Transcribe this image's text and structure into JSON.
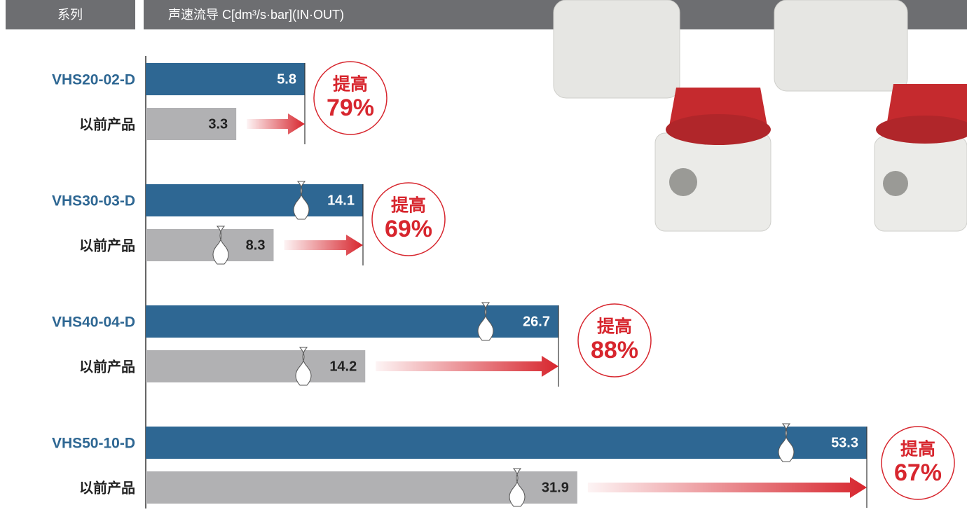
{
  "chart_data": {
    "type": "bar",
    "header": [
      "系列",
      "声速流导 C[dm³/s·bar](IN·OUT)"
    ],
    "categories": [
      "VHS20-02-D",
      "VHS30-03-D",
      "VHS40-04-D",
      "VHS50-10-D"
    ],
    "series": [
      {
        "color": "#2e6793",
        "values": [
          5.8,
          14.1,
          26.7,
          53.3
        ]
      },
      {
        "name": "以前产品",
        "color": "#b1b1b3",
        "values": [
          3.3,
          8.3,
          14.2,
          31.9
        ]
      }
    ],
    "increase_text": "提高",
    "increase": [
      79,
      69,
      88,
      67
    ],
    "increase_labels": [
      "79%",
      "69%",
      "88%",
      "67%"
    ],
    "accent_color": "#d7262e"
  }
}
